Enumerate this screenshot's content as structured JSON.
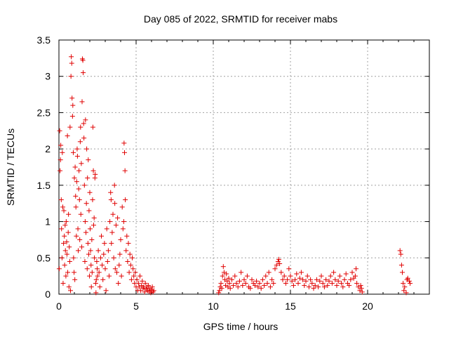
{
  "chart_data": {
    "type": "scatter",
    "title": "Day 085 of 2022, SRMTID for receiver mabs",
    "xlabel": "GPS time / hours",
    "ylabel": "SRMTID / TECUs",
    "xlim": [
      0,
      24
    ],
    "ylim": [
      0,
      3.5
    ],
    "xticks": [
      0,
      5,
      10,
      15,
      20
    ],
    "yticks": [
      0,
      0.5,
      1,
      1.5,
      2,
      2.5,
      3,
      3.5
    ],
    "xtick_labels": [
      "0",
      "5",
      "10",
      "15",
      "20"
    ],
    "ytick_labels": [
      "0",
      "0.5",
      "1",
      "1.5",
      "2",
      "2.5",
      "3",
      "3.5"
    ],
    "grid": true,
    "marker": "+",
    "color": "#e00000",
    "series": [
      {
        "name": "SRMTID",
        "points": [
          [
            0.02,
            0.35
          ],
          [
            0.05,
            2.25
          ],
          [
            0.07,
            1.7
          ],
          [
            0.1,
            1.85
          ],
          [
            0.12,
            2.05
          ],
          [
            0.15,
            1.3
          ],
          [
            0.17,
            0.9
          ],
          [
            0.2,
            0.5
          ],
          [
            0.22,
            1.95
          ],
          [
            0.25,
            1.2
          ],
          [
            0.27,
            0.15
          ],
          [
            0.3,
            0.7
          ],
          [
            0.32,
            1.15
          ],
          [
            0.35,
            0.8
          ],
          [
            0.37,
            0.4
          ],
          [
            0.4,
            0.95
          ],
          [
            0.42,
            0.6
          ],
          [
            0.45,
            0.25
          ],
          [
            0.47,
            1.0
          ],
          [
            0.5,
            0.72
          ],
          [
            0.52,
            0.55
          ],
          [
            0.55,
            2.18
          ],
          [
            0.57,
            0.3
          ],
          [
            0.6,
            0.85
          ],
          [
            0.62,
            1.1
          ],
          [
            0.65,
            0.1
          ],
          [
            0.67,
            0.65
          ],
          [
            0.7,
            0.45
          ],
          [
            0.72,
            2.3
          ],
          [
            0.75,
            0.05
          ],
          [
            0.78,
            3.0
          ],
          [
            0.8,
            3.27
          ],
          [
            0.83,
            3.18
          ],
          [
            0.85,
            2.7
          ],
          [
            0.88,
            2.45
          ],
          [
            0.9,
            2.6
          ],
          [
            0.93,
            1.95
          ],
          [
            0.95,
            0.5
          ],
          [
            0.98,
            0.3
          ],
          [
            1.0,
            1.6
          ],
          [
            1.03,
            0.2
          ],
          [
            1.05,
            1.75
          ],
          [
            1.08,
            1.35
          ],
          [
            1.1,
            1.2
          ],
          [
            1.13,
            0.8
          ],
          [
            1.15,
            1.55
          ],
          [
            1.18,
            2.0
          ],
          [
            1.2,
            1.9
          ],
          [
            1.23,
            0.9
          ],
          [
            1.25,
            0.6
          ],
          [
            1.28,
            1.45
          ],
          [
            1.3,
            1.7
          ],
          [
            1.33,
            1.3
          ],
          [
            1.35,
            0.75
          ],
          [
            1.38,
            2.1
          ],
          [
            1.4,
            2.3
          ],
          [
            1.42,
            1.1
          ],
          [
            1.45,
            1.8
          ],
          [
            1.48,
            0.65
          ],
          [
            1.5,
            2.65
          ],
          [
            1.52,
            3.24
          ],
          [
            1.55,
            3.22
          ],
          [
            1.57,
            3.05
          ],
          [
            1.6,
            2.35
          ],
          [
            1.62,
            2.15
          ],
          [
            1.65,
            1.5
          ],
          [
            1.68,
            0.45
          ],
          [
            1.7,
            1.0
          ],
          [
            1.72,
            2.4
          ],
          [
            1.75,
            0.85
          ],
          [
            1.78,
            1.25
          ],
          [
            1.8,
            2.0
          ],
          [
            1.83,
            0.35
          ],
          [
            1.85,
            1.6
          ],
          [
            1.88,
            0.7
          ],
          [
            1.9,
            1.85
          ],
          [
            1.93,
            0.55
          ],
          [
            1.95,
            1.15
          ],
          [
            1.98,
            0.25
          ],
          [
            2.0,
            1.4
          ],
          [
            2.02,
            0.9
          ],
          [
            2.05,
            0.6
          ],
          [
            2.08,
            0.4
          ],
          [
            2.1,
            0.1
          ],
          [
            2.13,
            0.75
          ],
          [
            2.15,
            0.3
          ],
          [
            2.18,
            1.3
          ],
          [
            2.2,
            2.3
          ],
          [
            2.23,
            1.7
          ],
          [
            2.25,
            0.95
          ],
          [
            2.28,
            1.05
          ],
          [
            2.3,
            0.5
          ],
          [
            2.33,
            1.6
          ],
          [
            2.35,
            1.65
          ],
          [
            2.38,
            0.15
          ],
          [
            2.4,
            0.02
          ],
          [
            2.42,
            0.2
          ],
          [
            2.45,
            0.45
          ],
          [
            2.48,
            0.35
          ],
          [
            2.5,
            0.25
          ],
          [
            2.55,
            0.6
          ],
          [
            2.6,
            0.3
          ],
          [
            2.65,
            0.1
          ],
          [
            2.7,
            0.5
          ],
          [
            2.75,
            0.8
          ],
          [
            2.8,
            0.4
          ],
          [
            2.85,
            0.2
          ],
          [
            2.9,
            0.55
          ],
          [
            2.95,
            0.7
          ],
          [
            3.0,
            0.35
          ],
          [
            3.05,
            0.05
          ],
          [
            3.1,
            0.9
          ],
          [
            3.15,
            0.45
          ],
          [
            3.2,
            0.6
          ],
          [
            3.25,
            0.25
          ],
          [
            3.3,
            1.0
          ],
          [
            3.35,
            1.4
          ],
          [
            3.38,
            1.3
          ],
          [
            3.4,
            0.7
          ],
          [
            3.45,
            0.85
          ],
          [
            3.5,
            1.1
          ],
          [
            3.55,
            0.5
          ],
          [
            3.6,
            1.5
          ],
          [
            3.62,
            1.25
          ],
          [
            3.65,
            0.35
          ],
          [
            3.7,
            0.95
          ],
          [
            3.75,
            0.3
          ],
          [
            3.8,
            1.05
          ],
          [
            3.85,
            0.15
          ],
          [
            3.9,
            0.4
          ],
          [
            3.95,
            0.55
          ],
          [
            4.0,
            0.75
          ],
          [
            4.05,
            0.25
          ],
          [
            4.1,
            1.2
          ],
          [
            4.15,
            0.9
          ],
          [
            4.2,
            1.0
          ],
          [
            4.22,
            2.08
          ],
          [
            4.25,
            1.95
          ],
          [
            4.28,
            1.7
          ],
          [
            4.3,
            1.3
          ],
          [
            4.35,
            0.6
          ],
          [
            4.4,
            0.8
          ],
          [
            4.45,
            0.45
          ],
          [
            4.5,
            0.7
          ],
          [
            4.55,
            0.3
          ],
          [
            4.6,
            0.55
          ],
          [
            4.65,
            0.4
          ],
          [
            4.7,
            0.2
          ],
          [
            4.75,
            0.5
          ],
          [
            4.8,
            0.35
          ],
          [
            4.85,
            0.25
          ],
          [
            4.9,
            0.15
          ],
          [
            4.95,
            0.3
          ],
          [
            5.0,
            0.1
          ],
          [
            5.05,
            0.2
          ],
          [
            5.1,
            0.05
          ],
          [
            5.15,
            0.15
          ],
          [
            5.2,
            0.1
          ],
          [
            5.25,
            0.25
          ],
          [
            5.3,
            0.05
          ],
          [
            5.35,
            0.12
          ],
          [
            5.4,
            0.18
          ],
          [
            5.45,
            0.08
          ],
          [
            5.5,
            0.1
          ],
          [
            5.55,
            0.03
          ],
          [
            5.6,
            0.15
          ],
          [
            5.65,
            0.07
          ],
          [
            5.7,
            0.1
          ],
          [
            5.75,
            0.05
          ],
          [
            5.8,
            0.12
          ],
          [
            5.85,
            0.04
          ],
          [
            5.9,
            0.08
          ],
          [
            5.95,
            0.02
          ],
          [
            6.0,
            0.06
          ],
          [
            6.05,
            0.1
          ],
          [
            6.1,
            0.03
          ],
          [
            6.15,
            0.05
          ],
          [
            10.35,
            0.02
          ],
          [
            10.4,
            0.05
          ],
          [
            10.45,
            0.1
          ],
          [
            10.5,
            0.15
          ],
          [
            10.55,
            0.08
          ],
          [
            10.6,
            0.25
          ],
          [
            10.65,
            0.38
          ],
          [
            10.7,
            0.3
          ],
          [
            10.75,
            0.2
          ],
          [
            10.8,
            0.12
          ],
          [
            10.85,
            0.28
          ],
          [
            10.9,
            0.18
          ],
          [
            10.95,
            0.1
          ],
          [
            11.0,
            0.22
          ],
          [
            11.05,
            0.15
          ],
          [
            11.1,
            0.08
          ],
          [
            11.2,
            0.2
          ],
          [
            11.3,
            0.12
          ],
          [
            11.4,
            0.25
          ],
          [
            11.5,
            0.15
          ],
          [
            11.6,
            0.1
          ],
          [
            11.7,
            0.18
          ],
          [
            11.8,
            0.3
          ],
          [
            11.9,
            0.12
          ],
          [
            12.0,
            0.2
          ],
          [
            12.1,
            0.15
          ],
          [
            12.2,
            0.25
          ],
          [
            12.3,
            0.1
          ],
          [
            12.4,
            0.08
          ],
          [
            12.5,
            0.2
          ],
          [
            12.6,
            0.15
          ],
          [
            12.7,
            0.12
          ],
          [
            12.8,
            0.18
          ],
          [
            12.9,
            0.1
          ],
          [
            13.0,
            0.15
          ],
          [
            13.1,
            0.08
          ],
          [
            13.2,
            0.2
          ],
          [
            13.3,
            0.12
          ],
          [
            13.4,
            0.25
          ],
          [
            13.5,
            0.15
          ],
          [
            13.6,
            0.3
          ],
          [
            13.7,
            0.1
          ],
          [
            13.8,
            0.2
          ],
          [
            13.9,
            0.15
          ],
          [
            14.0,
            0.35
          ],
          [
            14.1,
            0.4
          ],
          [
            14.2,
            0.45
          ],
          [
            14.25,
            0.48
          ],
          [
            14.3,
            0.42
          ],
          [
            14.4,
            0.3
          ],
          [
            14.5,
            0.2
          ],
          [
            14.6,
            0.25
          ],
          [
            14.7,
            0.15
          ],
          [
            14.8,
            0.2
          ],
          [
            14.9,
            0.35
          ],
          [
            15.0,
            0.25
          ],
          [
            15.1,
            0.18
          ],
          [
            15.2,
            0.12
          ],
          [
            15.3,
            0.2
          ],
          [
            15.4,
            0.28
          ],
          [
            15.5,
            0.15
          ],
          [
            15.6,
            0.22
          ],
          [
            15.7,
            0.3
          ],
          [
            15.8,
            0.2
          ],
          [
            15.9,
            0.12
          ],
          [
            16.0,
            0.18
          ],
          [
            16.1,
            0.25
          ],
          [
            16.2,
            0.1
          ],
          [
            16.3,
            0.2
          ],
          [
            16.4,
            0.15
          ],
          [
            16.5,
            0.08
          ],
          [
            16.6,
            0.12
          ],
          [
            16.7,
            0.2
          ],
          [
            16.8,
            0.1
          ],
          [
            16.9,
            0.18
          ],
          [
            17.0,
            0.25
          ],
          [
            17.1,
            0.15
          ],
          [
            17.2,
            0.1
          ],
          [
            17.3,
            0.2
          ],
          [
            17.4,
            0.12
          ],
          [
            17.5,
            0.18
          ],
          [
            17.6,
            0.25
          ],
          [
            17.7,
            0.15
          ],
          [
            17.8,
            0.3
          ],
          [
            17.9,
            0.2
          ],
          [
            18.0,
            0.12
          ],
          [
            18.1,
            0.18
          ],
          [
            18.2,
            0.25
          ],
          [
            18.3,
            0.15
          ],
          [
            18.4,
            0.1
          ],
          [
            18.5,
            0.2
          ],
          [
            18.6,
            0.28
          ],
          [
            18.7,
            0.15
          ],
          [
            18.8,
            0.12
          ],
          [
            18.9,
            0.2
          ],
          [
            19.0,
            0.3
          ],
          [
            19.1,
            0.22
          ],
          [
            19.2,
            0.25
          ],
          [
            19.25,
            0.35
          ],
          [
            19.3,
            0.15
          ],
          [
            19.4,
            0.1
          ],
          [
            19.5,
            0.05
          ],
          [
            19.55,
            0.12
          ],
          [
            19.6,
            0.08
          ],
          [
            19.65,
            0.03
          ],
          [
            22.1,
            0.6
          ],
          [
            22.15,
            0.55
          ],
          [
            22.2,
            0.4
          ],
          [
            22.25,
            0.3
          ],
          [
            22.3,
            0.15
          ],
          [
            22.35,
            0.05
          ],
          [
            22.4,
            0.1
          ],
          [
            22.5,
            0.02
          ],
          [
            22.55,
            0.2
          ],
          [
            22.6,
            0.22
          ],
          [
            22.7,
            0.18
          ],
          [
            22.75,
            0.15
          ]
        ]
      }
    ]
  }
}
